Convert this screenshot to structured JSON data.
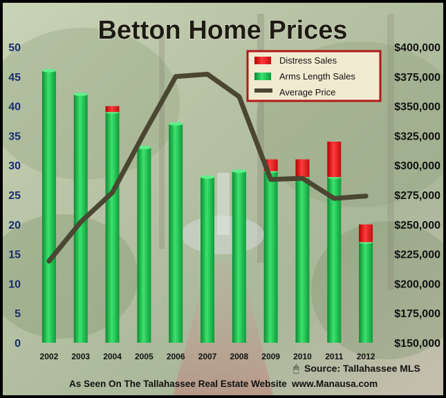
{
  "chart_data": {
    "type": "bar",
    "title": "Betton Home Prices",
    "categories": [
      "2002",
      "2003",
      "2004",
      "2005",
      "2006",
      "2007",
      "2008",
      "2009",
      "2010",
      "2011",
      "2012"
    ],
    "series": [
      {
        "name": "Distress Sales",
        "kind": "bar",
        "stack": "sales",
        "color": "#ee1111",
        "values": [
          0,
          0,
          1,
          0,
          0,
          0,
          0,
          2,
          3,
          6,
          3
        ]
      },
      {
        "name": "Arms Length Sales",
        "kind": "bar",
        "stack": "sales",
        "color": "#1fbf4f",
        "values": [
          46,
          42,
          39,
          33,
          37,
          28,
          29,
          29,
          28,
          28,
          17
        ]
      },
      {
        "name": "Average Price",
        "kind": "line",
        "axis": "right",
        "color": "#4a4632",
        "values": [
          219000,
          252000,
          277000,
          327000,
          375000,
          377000,
          358000,
          288000,
          289000,
          272000,
          274000
        ]
      }
    ],
    "y_left": {
      "min": 0,
      "max": 50,
      "step": 5,
      "tick_labels": [
        "0",
        "5",
        "10",
        "15",
        "20",
        "25",
        "30",
        "35",
        "40",
        "45",
        "50"
      ]
    },
    "y_right": {
      "min": 150000,
      "max": 400000,
      "step": 25000,
      "tick_labels": [
        "$150,000",
        "$175,000",
        "$200,000",
        "$225,000",
        "$250,000",
        "$275,000",
        "$300,000",
        "$325,000",
        "$350,000",
        "$375,000",
        "$400,000"
      ]
    },
    "legend_position": "top-right",
    "grid": false
  },
  "footer": {
    "source": "Source: Tallahassee MLS",
    "website": "As Seen On The Tallahassee Real Estate Website  www.Manausa.com"
  },
  "colors": {
    "frame": "#000000",
    "legend_border": "#b01818",
    "legend_bg": "#f2ead0",
    "text_dark": "#111111"
  }
}
